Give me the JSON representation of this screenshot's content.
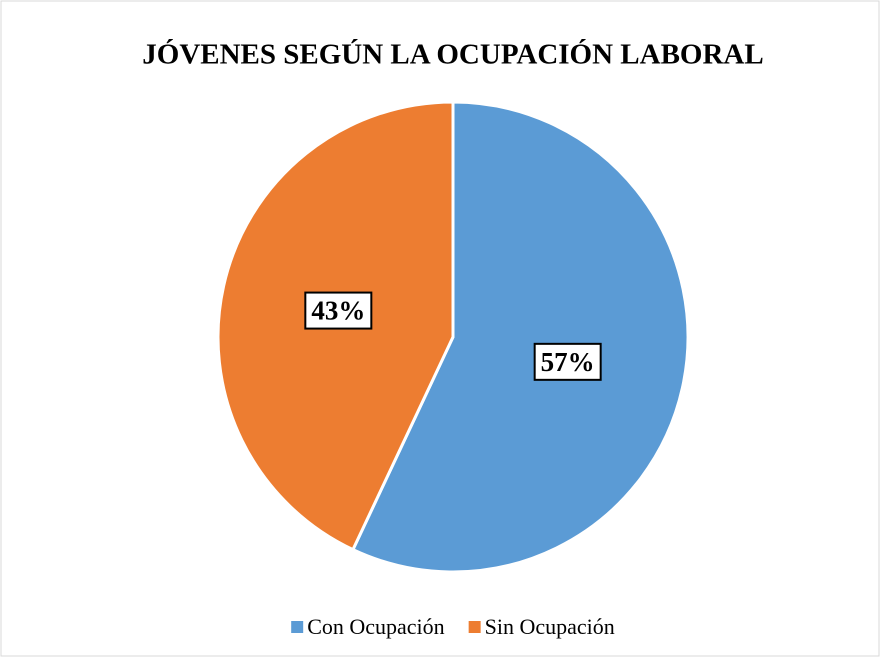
{
  "chart_data": {
    "type": "pie",
    "title": "JÓVENES SEGÚN LA OCUPACIÓN LABORAL",
    "categories": [
      "Con Ocupación",
      "Sin Ocupación"
    ],
    "values": [
      57,
      43
    ],
    "value_labels": [
      "57%",
      "43%"
    ],
    "colors": [
      "#5b9bd5",
      "#ed7d31"
    ],
    "legend": "bottom"
  }
}
